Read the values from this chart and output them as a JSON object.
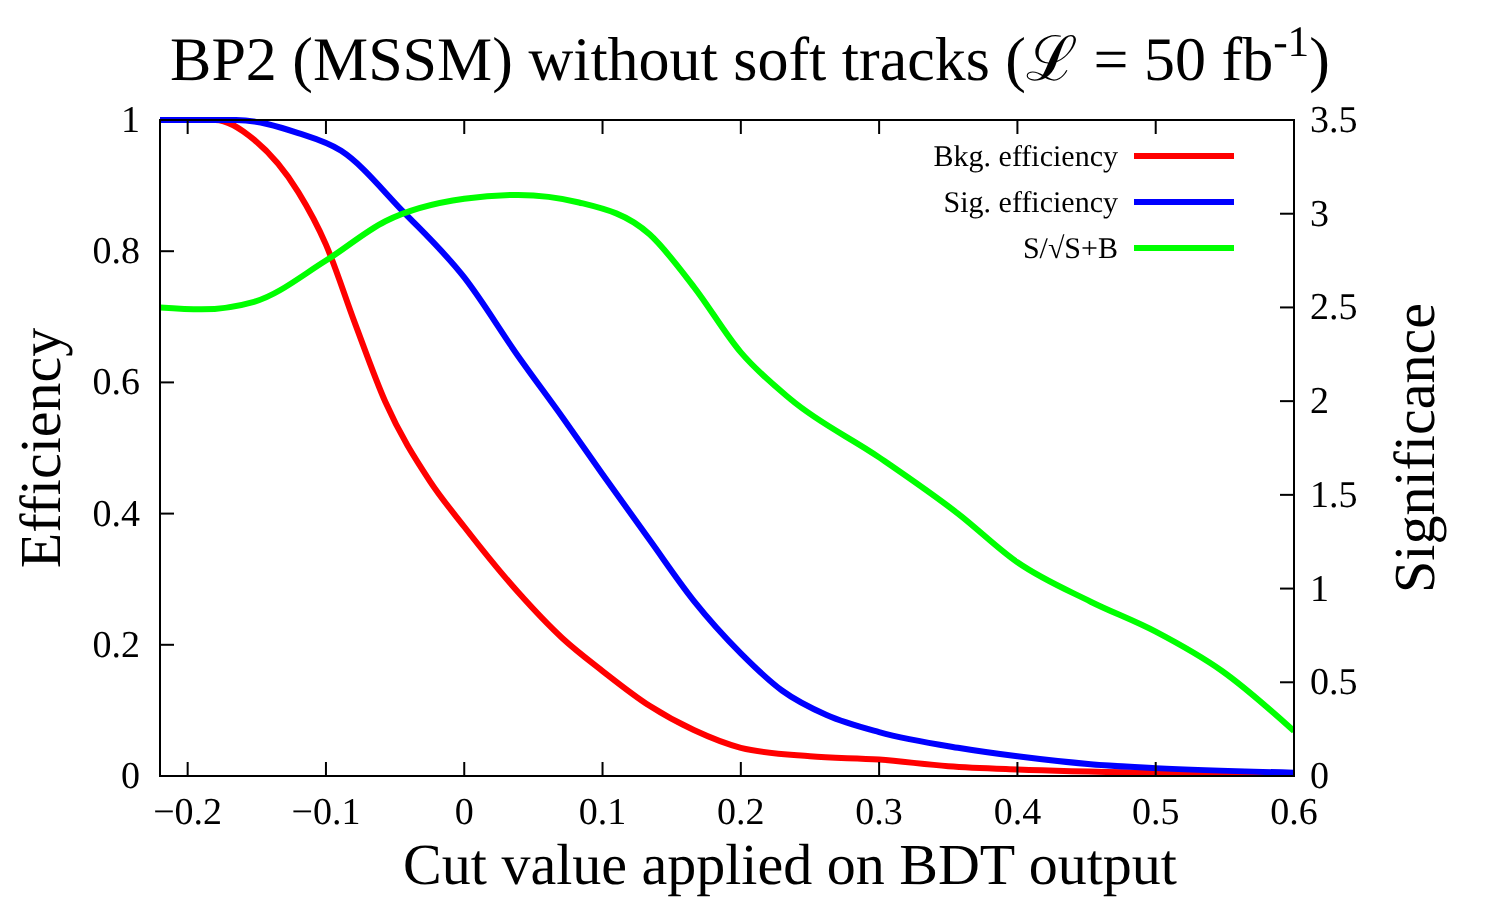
{
  "chart_data": {
    "type": "line",
    "title": "BP2 (MSSM) without soft tracks (ℒ = 50 fb$^{-1}$)",
    "xlabel": "Cut value applied on BDT output",
    "ylabel": "Efficiency",
    "y2label": "Significance",
    "xlim": [
      -0.22,
      0.6
    ],
    "xticks": [
      {
        "value": -0.2,
        "label": "−0.2"
      },
      {
        "value": -0.1,
        "label": "−0.1"
      },
      0,
      0.1,
      0.2,
      0.3,
      0.4,
      0.5,
      0.6
    ],
    "ylim": [
      0,
      1
    ],
    "yticks": [
      0,
      0.2,
      0.4,
      0.6,
      0.8,
      1
    ],
    "y2lim": [
      0,
      3.5
    ],
    "y2ticks": [
      0,
      0.5,
      1,
      1.5,
      2,
      2.5,
      3,
      3.5
    ],
    "grid": false,
    "legend": "top right",
    "line_style": "solid",
    "series": [
      {
        "name": "Bkg. efficiency",
        "color": "#ff0000",
        "x": [
          -0.22,
          -0.18,
          -0.152,
          -0.12,
          -0.1,
          -0.079,
          -0.057,
          -0.025,
          0,
          0.039,
          0.071,
          0.1,
          0.134,
          0.166,
          0.2,
          0.25,
          0.3,
          0.35,
          0.4,
          0.5,
          0.6
        ],
        "values": [
          1,
          1,
          0.97,
          0.89,
          0.81,
          0.69,
          0.57,
          0.45,
          0.38,
          0.28,
          0.21,
          0.16,
          0.107,
          0.07,
          0.043,
          0.03,
          0.025,
          0.015,
          0.01,
          0.005,
          0.003
        ]
      },
      {
        "name": "Sig. efficiency",
        "color": "#0000ff",
        "x": [
          -0.22,
          -0.165,
          -0.12,
          -0.089,
          -0.044,
          0,
          0.039,
          0.071,
          0.1,
          0.134,
          0.166,
          0.2,
          0.23,
          0.262,
          0.3,
          0.357,
          0.4,
          0.453,
          0.5,
          0.6
        ],
        "values": [
          1,
          1,
          0.98,
          0.953,
          0.86,
          0.76,
          0.64,
          0.547,
          0.46,
          0.36,
          0.267,
          0.187,
          0.13,
          0.093,
          0.067,
          0.043,
          0.03,
          0.018,
          0.012,
          0.005
        ]
      },
      {
        "name": "S/√S+B",
        "color": "#00ff00",
        "axis": "y2",
        "x": [
          -0.22,
          -0.19,
          -0.152,
          -0.1,
          -0.057,
          0,
          0.039,
          0.083,
          0.134,
          0.166,
          0.2,
          0.236,
          0.3,
          0.357,
          0.4,
          0.453,
          0.5,
          0.548,
          0.6
        ],
        "values": [
          2.5,
          2.49,
          2.53,
          2.75,
          2.96,
          3.08,
          3.1,
          3.06,
          2.89,
          2.61,
          2.26,
          2.01,
          1.7,
          1.4,
          1.14,
          0.93,
          0.77,
          0.56,
          0.24
        ]
      }
    ]
  }
}
